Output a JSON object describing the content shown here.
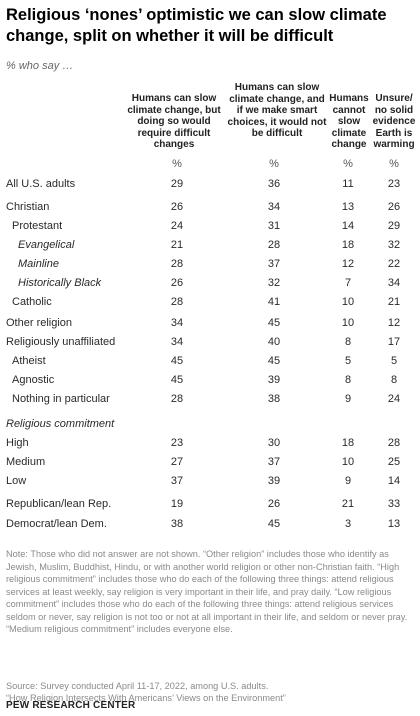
{
  "title": "Religious ‘nones’ optimistic we can slow climate change, split on whether it will be difficult",
  "subtitle": "% who say …",
  "chart_data": {
    "type": "table",
    "columns": [
      {
        "label": "Humans can slow climate change, but doing so would require difficult changes",
        "unit": "%"
      },
      {
        "label": "Humans can slow climate change, and if we make smart choices, it would not be difficult",
        "unit": "%"
      },
      {
        "label": "Humans cannot slow climate change",
        "unit": "%"
      },
      {
        "label": "Unsure/ no solid evidence Earth is warming",
        "unit": "%"
      }
    ],
    "rows": [
      {
        "label": "All U.S. adults",
        "indent": 0,
        "italic": false,
        "values": [
          "29",
          "36",
          "11",
          "23"
        ]
      },
      {
        "label": "Christian",
        "indent": 0,
        "italic": false,
        "values": [
          "26",
          "34",
          "13",
          "26"
        ]
      },
      {
        "label": "Protestant",
        "indent": 1,
        "italic": false,
        "values": [
          "24",
          "31",
          "14",
          "29"
        ]
      },
      {
        "label": "Evangelical",
        "indent": 2,
        "italic": true,
        "values": [
          "21",
          "28",
          "18",
          "32"
        ]
      },
      {
        "label": "Mainline",
        "indent": 2,
        "italic": true,
        "values": [
          "28",
          "37",
          "12",
          "22"
        ]
      },
      {
        "label": "Historically Black",
        "indent": 2,
        "italic": true,
        "values": [
          "26",
          "32",
          "7",
          "34"
        ]
      },
      {
        "label": "Catholic",
        "indent": 1,
        "italic": false,
        "values": [
          "28",
          "41",
          "10",
          "21"
        ]
      },
      {
        "label": "Other religion",
        "indent": 0,
        "italic": false,
        "values": [
          "34",
          "45",
          "10",
          "12"
        ]
      },
      {
        "label": "Religiously unaffiliated",
        "indent": 0,
        "italic": false,
        "values": [
          "34",
          "40",
          "8",
          "17"
        ]
      },
      {
        "label": "Atheist",
        "indent": 1,
        "italic": false,
        "values": [
          "45",
          "45",
          "5",
          "5"
        ]
      },
      {
        "label": "Agnostic",
        "indent": 1,
        "italic": false,
        "values": [
          "45",
          "39",
          "8",
          "8"
        ]
      },
      {
        "label": "Nothing in particular",
        "indent": 1,
        "italic": false,
        "values": [
          "28",
          "38",
          "9",
          "24"
        ]
      }
    ],
    "commitment_section": {
      "label": "Religious commitment",
      "rows": [
        {
          "label": "High",
          "values": [
            "23",
            "30",
            "18",
            "28"
          ]
        },
        {
          "label": "Medium",
          "values": [
            "27",
            "37",
            "10",
            "25"
          ]
        },
        {
          "label": "Low",
          "values": [
            "37",
            "39",
            "9",
            "14"
          ]
        }
      ]
    },
    "party_rows": [
      {
        "label": "Republican/lean Rep.",
        "values": [
          "19",
          "26",
          "21",
          "33"
        ]
      },
      {
        "label": "Democrat/lean Dem.",
        "values": [
          "38",
          "45",
          "3",
          "13"
        ]
      }
    ]
  },
  "note": "Note: Those who did not answer are not shown. “Other religion” includes those who identify as Jewish, Muslim, Buddhist, Hindu, or with another world religion or other non-Christian faith. “High religious commitment” includes those who do each of the following three things: attend religious services at least weekly, say religion is very important in their life, and pray daily. “Low religious commitment” includes those who do each of the following three things: attend religious services seldom or never, say religion is not too or not at all important in their life, and seldom or never pray. “Medium religious commitment” includes everyone else.",
  "source_line1": "Source: Survey conducted April 11-17, 2022, among U.S. adults.",
  "source_line2": "“How Religion Intersects With Americans’ Views on the Environment”",
  "org": "PEW RESEARCH CENTER"
}
